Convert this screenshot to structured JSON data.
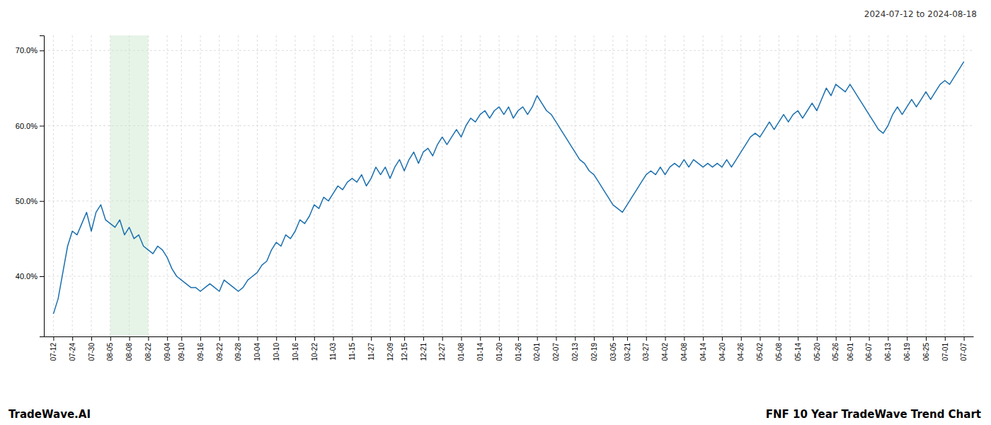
{
  "chart_data": {
    "type": "line",
    "title": "FNF 10 Year TradeWave Trend Chart",
    "subtitle": "2024-07-12 to 2024-08-18",
    "annotations": [
      "TradeWave.AI"
    ],
    "color": "#1a6faf",
    "grid": true,
    "ylim": [
      32,
      72
    ],
    "yticks": [
      {
        "value": 40.0,
        "label": "40.0%"
      },
      {
        "value": 50.0,
        "label": "50.0%"
      },
      {
        "value": 60.0,
        "label": "60.0%"
      },
      {
        "value": 70.0,
        "label": "70.0%"
      }
    ],
    "highlight": {
      "from": "08-05",
      "to": "08-22",
      "color": "#c8e6c9"
    },
    "categories": [
      "07-12",
      null,
      null,
      null,
      "07-24",
      null,
      null,
      null,
      "07-30",
      null,
      null,
      null,
      "08-05",
      null,
      null,
      null,
      "08-08",
      null,
      null,
      null,
      "08-22",
      null,
      null,
      null,
      "09-04",
      null,
      null,
      "09-10",
      null,
      null,
      null,
      "09-16",
      null,
      null,
      null,
      "09-22",
      null,
      null,
      null,
      "09-28",
      null,
      null,
      null,
      "10-04",
      null,
      null,
      null,
      "10-10",
      null,
      null,
      null,
      "10-16",
      null,
      null,
      null,
      "10-22",
      null,
      null,
      null,
      "11-03",
      null,
      null,
      null,
      "11-15",
      null,
      null,
      null,
      "11-27",
      null,
      null,
      null,
      "12-09",
      null,
      null,
      "12-15",
      null,
      null,
      null,
      "12-21",
      null,
      null,
      null,
      "12-27",
      null,
      null,
      null,
      "01-08",
      null,
      null,
      null,
      "01-14",
      null,
      null,
      null,
      "01-20",
      null,
      null,
      null,
      "01-26",
      null,
      null,
      null,
      "02-01",
      null,
      null,
      null,
      "02-07",
      null,
      null,
      null,
      "02-13",
      null,
      null,
      null,
      "02-19",
      null,
      null,
      null,
      "03-05",
      null,
      null,
      "03-21",
      null,
      null,
      null,
      "03-27",
      null,
      null,
      null,
      "04-02",
      null,
      null,
      null,
      "04-08",
      null,
      null,
      null,
      "04-14",
      null,
      null,
      null,
      "04-20",
      null,
      null,
      null,
      "04-26",
      null,
      null,
      null,
      "05-02",
      null,
      null,
      null,
      "05-08",
      null,
      null,
      null,
      "05-14",
      null,
      null,
      null,
      "05-20",
      null,
      null,
      null,
      "05-26",
      null,
      null,
      "06-01",
      null,
      null,
      null,
      "06-07",
      null,
      null,
      null,
      "06-13",
      null,
      null,
      null,
      "06-19",
      null,
      null,
      null,
      "06-25",
      null,
      null,
      null,
      "07-01",
      null,
      null,
      null,
      "07-07"
    ],
    "values": [
      35.0,
      37.0,
      40.5,
      44.0,
      46.0,
      45.5,
      47.0,
      48.5,
      46.0,
      48.5,
      49.5,
      47.5,
      47.0,
      46.5,
      47.5,
      45.5,
      46.5,
      45.0,
      45.5,
      44.0,
      43.5,
      43.0,
      44.0,
      43.5,
      42.5,
      41.0,
      40.0,
      39.5,
      39.0,
      38.5,
      38.5,
      38.0,
      38.5,
      39.0,
      38.5,
      38.0,
      39.5,
      39.0,
      38.5,
      38.0,
      38.5,
      39.5,
      40.0,
      40.5,
      41.5,
      42.0,
      43.5,
      44.5,
      44.0,
      45.5,
      45.0,
      46.0,
      47.5,
      47.0,
      48.0,
      49.5,
      49.0,
      50.5,
      50.0,
      51.0,
      52.0,
      51.5,
      52.5,
      53.0,
      52.5,
      53.5,
      52.0,
      53.0,
      54.5,
      53.5,
      54.5,
      53.0,
      54.5,
      55.5,
      54.0,
      55.5,
      56.5,
      55.0,
      56.5,
      57.0,
      56.0,
      57.5,
      58.5,
      57.5,
      58.5,
      59.5,
      58.5,
      60.0,
      61.0,
      60.5,
      61.5,
      62.0,
      61.0,
      62.0,
      62.5,
      61.5,
      62.5,
      61.0,
      62.0,
      62.5,
      61.5,
      62.5,
      64.0,
      63.0,
      62.0,
      61.5,
      60.5,
      59.5,
      58.5,
      57.5,
      56.5,
      55.5,
      55.0,
      54.0,
      53.5,
      52.5,
      51.5,
      50.5,
      49.5,
      49.0,
      48.5,
      49.5,
      50.5,
      51.5,
      52.5,
      53.5,
      54.0,
      53.5,
      54.5,
      53.5,
      54.5,
      55.0,
      54.5,
      55.5,
      54.5,
      55.5,
      55.0,
      54.5,
      55.0,
      54.5,
      55.0,
      54.5,
      55.5,
      54.5,
      55.5,
      56.5,
      57.5,
      58.5,
      59.0,
      58.5,
      59.5,
      60.5,
      59.5,
      60.5,
      61.5,
      60.5,
      61.5,
      62.0,
      61.0,
      62.0,
      63.0,
      62.0,
      63.5,
      65.0,
      64.0,
      65.5,
      65.0,
      64.5,
      65.5,
      64.5,
      63.5,
      62.5,
      61.5,
      60.5,
      59.5,
      59.0,
      60.0,
      61.5,
      62.5,
      61.5,
      62.5,
      63.5,
      62.5,
      63.5,
      64.5,
      63.5,
      64.5,
      65.5,
      66.0,
      65.5,
      66.5,
      67.5,
      68.5
    ]
  }
}
